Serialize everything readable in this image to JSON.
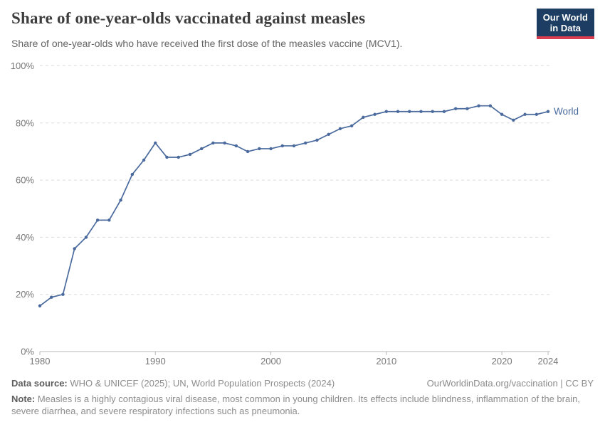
{
  "header": {
    "title": "Share of one-year-olds vaccinated against measles",
    "subtitle": "Share of one-year-olds who have received the first dose of the measles vaccine (MCV1)."
  },
  "logo": {
    "line1": "Our World",
    "line2": "in Data",
    "bg_color": "#1d3d63",
    "accent_color": "#d83c4e"
  },
  "chart_data": {
    "type": "line",
    "title": "Share of one-year-olds vaccinated against measles",
    "xlabel": "",
    "ylabel": "",
    "ylim": [
      0,
      100
    ],
    "yticks": [
      0,
      20,
      40,
      60,
      80,
      100
    ],
    "ytick_suffix": "%",
    "xticks": [
      1980,
      1990,
      2000,
      2010,
      2020,
      2024
    ],
    "grid": "dashed-horizontal",
    "legend_position": "end-of-line-label",
    "x": [
      1980,
      1981,
      1982,
      1983,
      1984,
      1985,
      1986,
      1987,
      1988,
      1989,
      1990,
      1991,
      1992,
      1993,
      1994,
      1995,
      1996,
      1997,
      1998,
      1999,
      2000,
      2001,
      2002,
      2003,
      2004,
      2005,
      2006,
      2007,
      2008,
      2009,
      2010,
      2011,
      2012,
      2013,
      2014,
      2015,
      2016,
      2017,
      2018,
      2019,
      2020,
      2021,
      2022,
      2023,
      2024
    ],
    "series": [
      {
        "name": "World",
        "color": "#4a6a9d",
        "values": [
          16,
          19,
          20,
          36,
          40,
          46,
          46,
          53,
          62,
          67,
          73,
          68,
          68,
          69,
          71,
          73,
          73,
          72,
          70,
          71,
          71,
          72,
          72,
          73,
          74,
          76,
          78,
          79,
          82,
          83,
          84,
          84,
          84,
          84,
          84,
          84,
          85,
          85,
          86,
          86,
          83,
          81,
          83,
          83,
          84
        ]
      }
    ],
    "axis_color": "#b8b8b8",
    "grid_color": "#dddddd",
    "tick_label_color": "#787878"
  },
  "footer": {
    "datasource_label": "Data source:",
    "datasource_value": " WHO & UNICEF (2025); UN, World Population Prospects (2024)",
    "link": "OurWorldinData.org/vaccination | CC BY",
    "note_label": "Note:",
    "note_text": " Measles is a highly contagious viral disease, most common in young children. Its effects include blindness, inflammation of the brain, severe diarrhea, and severe respiratory infections such as pneumonia."
  }
}
